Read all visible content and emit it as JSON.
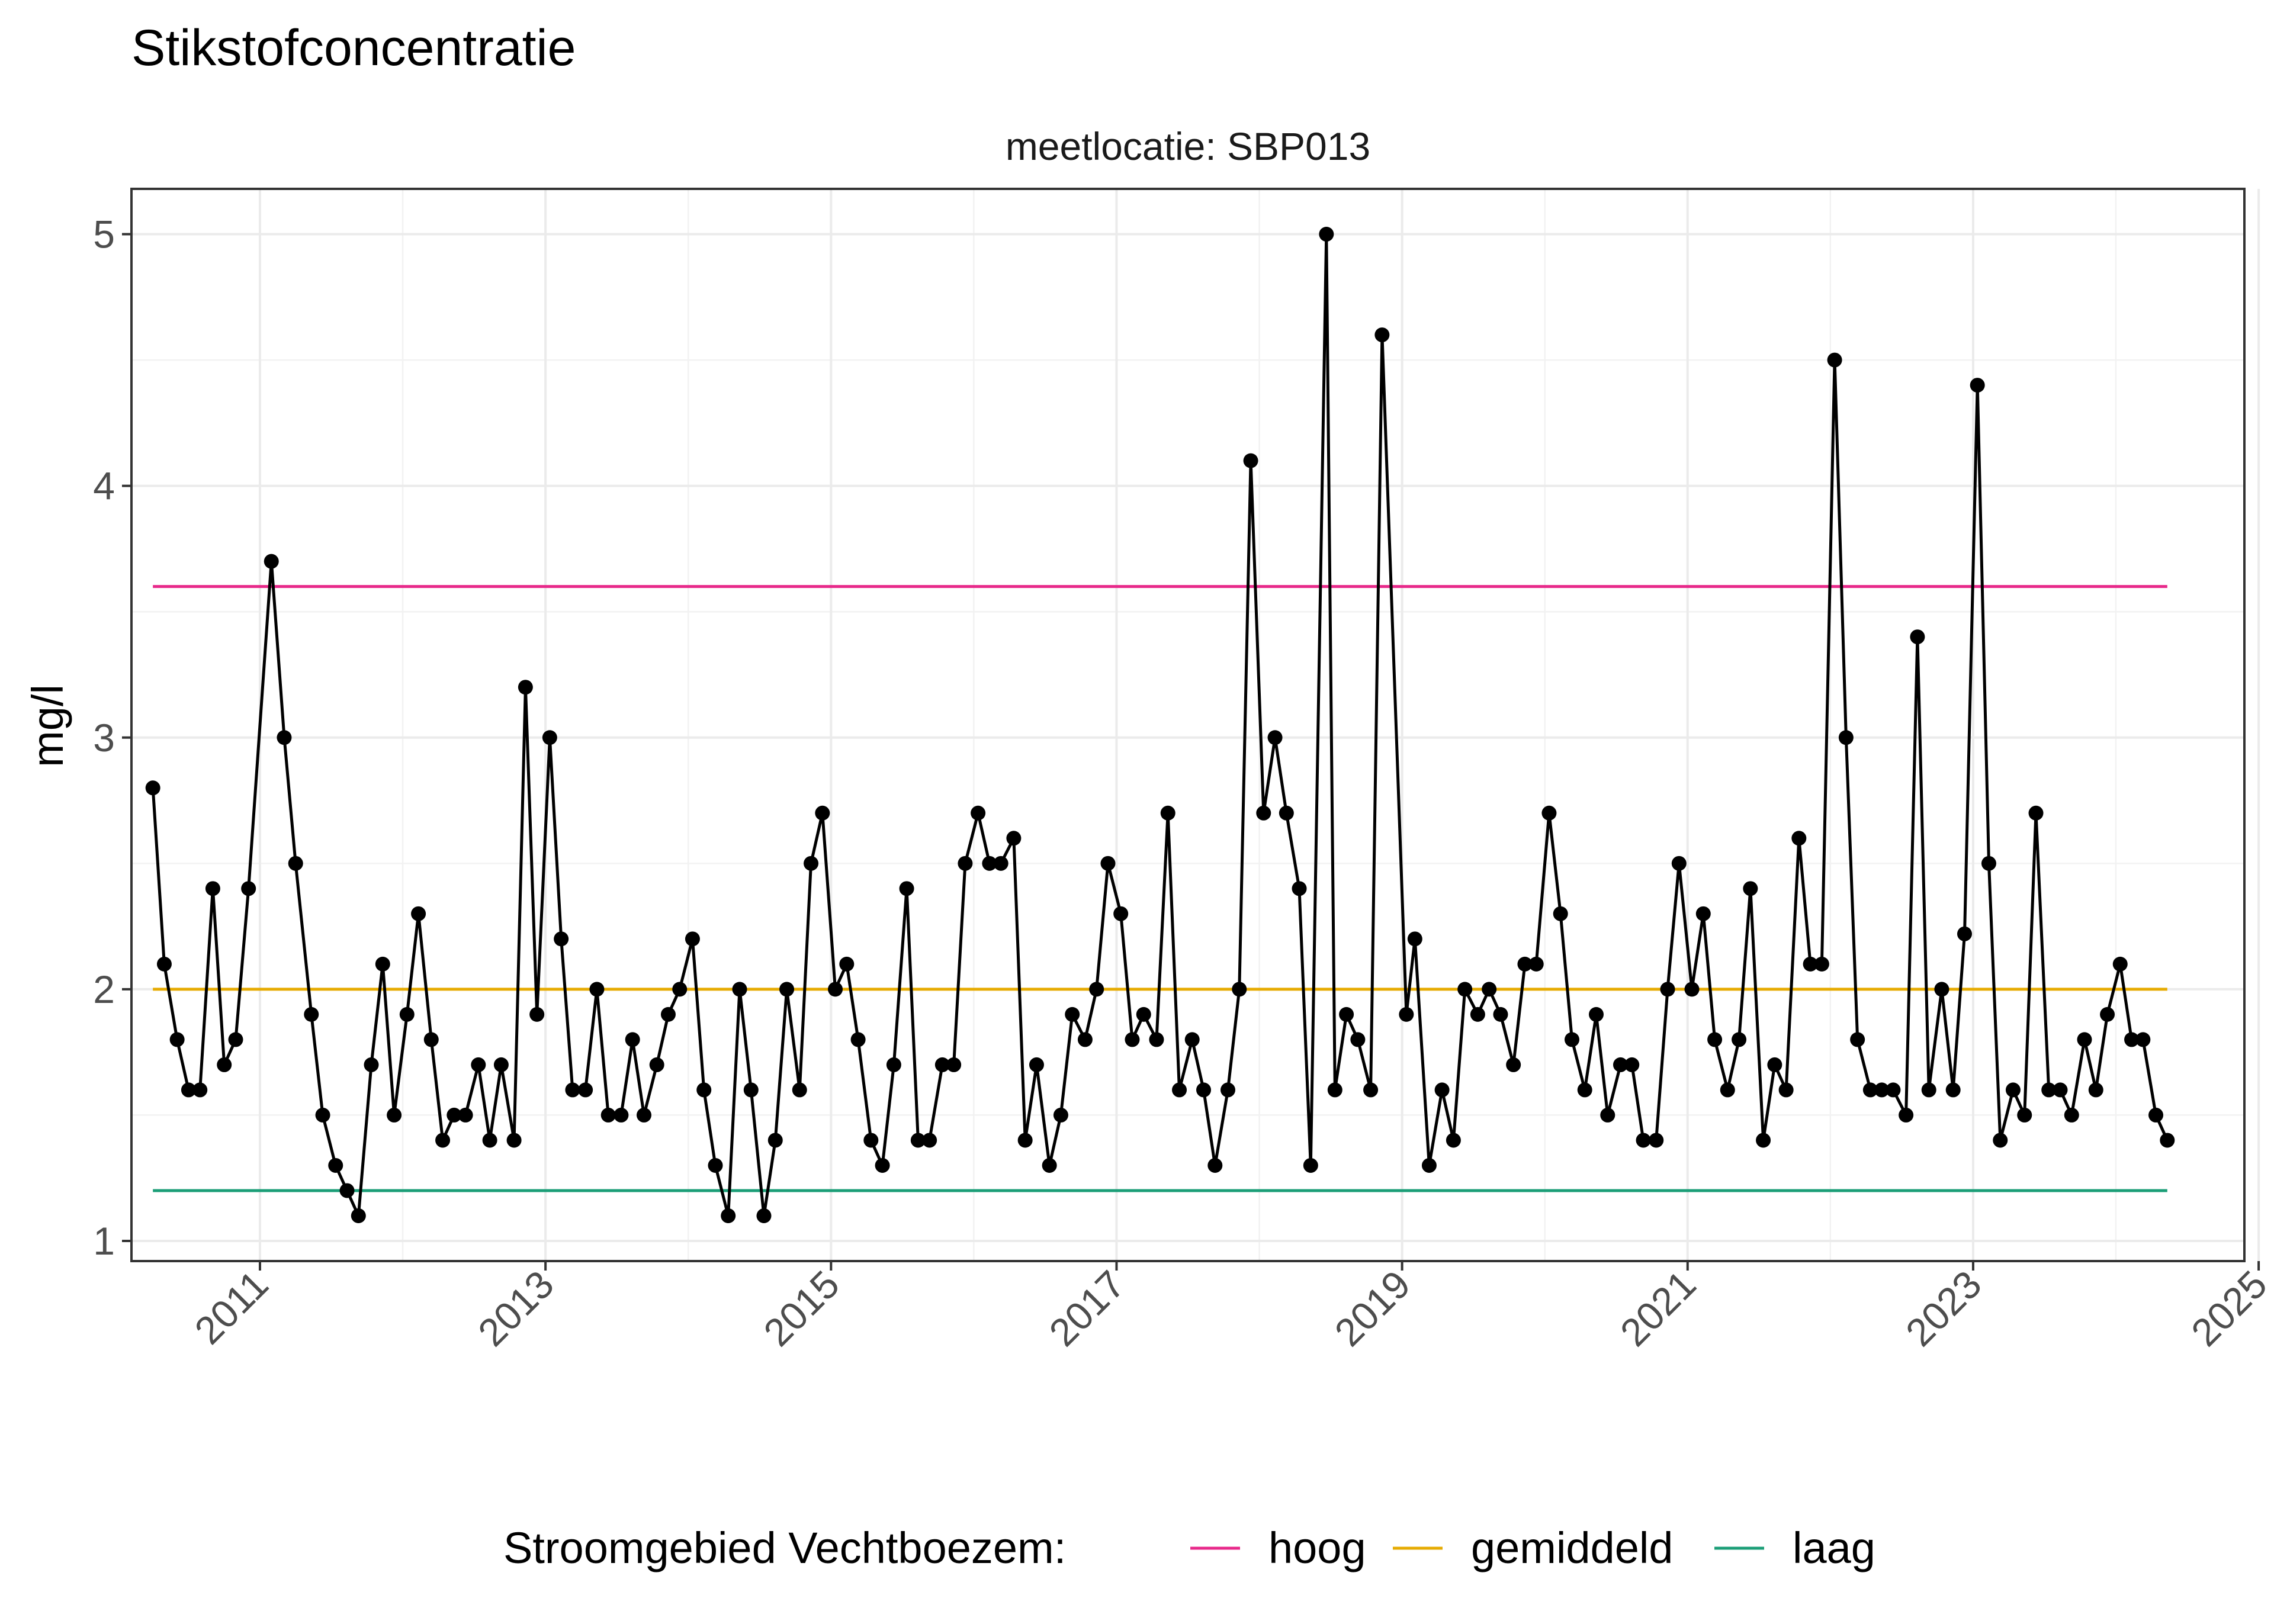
{
  "chart_data": {
    "type": "line",
    "title": "Stikstofconcentratie",
    "facet_label": "meetlocatie: SBP013",
    "ylabel": "mg/l",
    "xlabel": "",
    "xlim": [
      2010.1,
      2024.9
    ],
    "ylim": [
      0.92,
      5.18
    ],
    "x_ticks": [
      2011,
      2013,
      2015,
      2017,
      2019,
      2021,
      2023,
      2025
    ],
    "x_tick_labels": [
      "2011",
      "2013",
      "2015",
      "2017",
      "2019",
      "2021",
      "2023",
      "2025"
    ],
    "y_ticks": [
      1,
      2,
      3,
      4,
      5
    ],
    "y_tick_labels": [
      "1",
      "2",
      "3",
      "4",
      "5"
    ],
    "grid": true,
    "legend_position": "bottom",
    "legend_title": "Stroomgebied Vechtboezem:",
    "reference_lines": [
      {
        "name": "hoog",
        "value": 3.6,
        "color": "#E7298A"
      },
      {
        "name": "gemiddeld",
        "value": 2.0,
        "color": "#E6AB02"
      },
      {
        "name": "laag",
        "value": 1.2,
        "color": "#1B9E77"
      }
    ],
    "series": [
      {
        "color": "#000000",
        "x": [
          2010.25,
          2010.33,
          2010.42,
          2010.5,
          2010.58,
          2010.67,
          2010.75,
          2010.83,
          2010.92,
          2011.08,
          2011.17,
          2011.25,
          2011.36,
          2011.44,
          2011.53,
          2011.61,
          2011.69,
          2011.78,
          2011.86,
          2011.94,
          2012.03,
          2012.11,
          2012.2,
          2012.28,
          2012.36,
          2012.44,
          2012.53,
          2012.61,
          2012.69,
          2012.78,
          2012.86,
          2012.94,
          2013.03,
          2013.11,
          2013.19,
          2013.28,
          2013.36,
          2013.44,
          2013.53,
          2013.61,
          2013.69,
          2013.78,
          2013.86,
          2013.94,
          2014.03,
          2014.11,
          2014.19,
          2014.28,
          2014.36,
          2014.44,
          2014.53,
          2014.61,
          2014.69,
          2014.78,
          2014.86,
          2014.94,
          2015.03,
          2015.11,
          2015.19,
          2015.28,
          2015.36,
          2015.44,
          2015.53,
          2015.61,
          2015.69,
          2015.78,
          2015.86,
          2015.94,
          2016.03,
          2016.11,
          2016.19,
          2016.28,
          2016.36,
          2016.44,
          2016.53,
          2016.61,
          2016.69,
          2016.78,
          2016.86,
          2016.94,
          2017.03,
          2017.11,
          2017.19,
          2017.28,
          2017.36,
          2017.44,
          2017.53,
          2017.61,
          2017.69,
          2017.78,
          2017.86,
          2017.94,
          2018.03,
          2018.11,
          2018.19,
          2018.28,
          2018.36,
          2018.47,
          2018.53,
          2018.61,
          2018.69,
          2018.78,
          2018.86,
          2019.03,
          2019.09,
          2019.19,
          2019.28,
          2019.36,
          2019.44,
          2019.53,
          2019.61,
          2019.69,
          2019.78,
          2019.86,
          2019.94,
          2020.03,
          2020.11,
          2020.19,
          2020.28,
          2020.36,
          2020.44,
          2020.53,
          2020.61,
          2020.69,
          2020.78,
          2020.86,
          2020.94,
          2021.03,
          2021.11,
          2021.19,
          2021.28,
          2021.36,
          2021.44,
          2021.53,
          2021.61,
          2021.69,
          2021.78,
          2021.86,
          2021.94,
          2022.03,
          2022.11,
          2022.19,
          2022.28,
          2022.36,
          2022.44,
          2022.53,
          2022.61,
          2022.69,
          2022.78,
          2022.86,
          2022.94,
          2023.03,
          2023.11,
          2023.19,
          2023.28,
          2023.36,
          2023.44,
          2023.53,
          2023.61,
          2023.69,
          2023.78,
          2023.86,
          2023.94,
          2024.03,
          2024.11,
          2024.19,
          2024.28,
          2024.36
        ],
        "y": [
          2.8,
          2.1,
          1.8,
          1.6,
          1.6,
          2.4,
          1.7,
          1.8,
          2.4,
          3.7,
          3.0,
          2.5,
          1.9,
          1.5,
          1.3,
          1.2,
          1.1,
          1.7,
          2.1,
          1.5,
          1.9,
          2.3,
          1.8,
          1.4,
          1.5,
          1.5,
          1.7,
          1.4,
          1.7,
          1.4,
          3.2,
          1.9,
          3.0,
          2.2,
          1.6,
          1.6,
          2.0,
          1.5,
          1.5,
          1.8,
          1.5,
          1.7,
          1.9,
          2.0,
          2.2,
          1.6,
          1.3,
          1.1,
          2.0,
          1.6,
          1.1,
          1.4,
          2.0,
          1.6,
          2.5,
          2.7,
          2.0,
          2.1,
          1.8,
          1.4,
          1.3,
          1.7,
          2.4,
          1.4,
          1.4,
          1.7,
          1.7,
          2.5,
          2.7,
          2.5,
          2.5,
          2.6,
          1.4,
          1.7,
          1.3,
          1.5,
          1.9,
          1.8,
          2.0,
          2.5,
          2.3,
          1.8,
          1.9,
          1.8,
          2.7,
          1.6,
          1.8,
          1.6,
          1.3,
          1.6,
          2.0,
          4.1,
          2.7,
          3.0,
          2.7,
          2.4,
          1.3,
          5.0,
          1.6,
          1.9,
          1.8,
          1.6,
          4.6,
          1.9,
          2.2,
          1.3,
          1.6,
          1.4,
          2.0,
          1.9,
          2.0,
          1.9,
          1.7,
          2.1,
          2.1,
          2.7,
          2.3,
          1.8,
          1.6,
          1.9,
          1.5,
          1.7,
          1.7,
          1.4,
          1.4,
          2.0,
          2.5,
          2.0,
          2.3,
          1.8,
          1.6,
          1.8,
          2.4,
          1.4,
          1.7,
          1.6,
          2.6,
          2.1,
          2.1,
          4.5,
          3.0,
          1.8,
          1.6,
          1.6,
          1.6,
          1.5,
          3.4,
          1.6,
          2.0,
          1.6,
          2.22,
          4.4,
          2.5,
          1.4,
          1.6,
          1.5,
          2.7,
          1.6,
          1.6,
          1.5,
          1.8,
          1.6,
          1.9,
          2.1,
          1.8,
          1.8,
          1.5,
          1.4
        ]
      }
    ]
  }
}
